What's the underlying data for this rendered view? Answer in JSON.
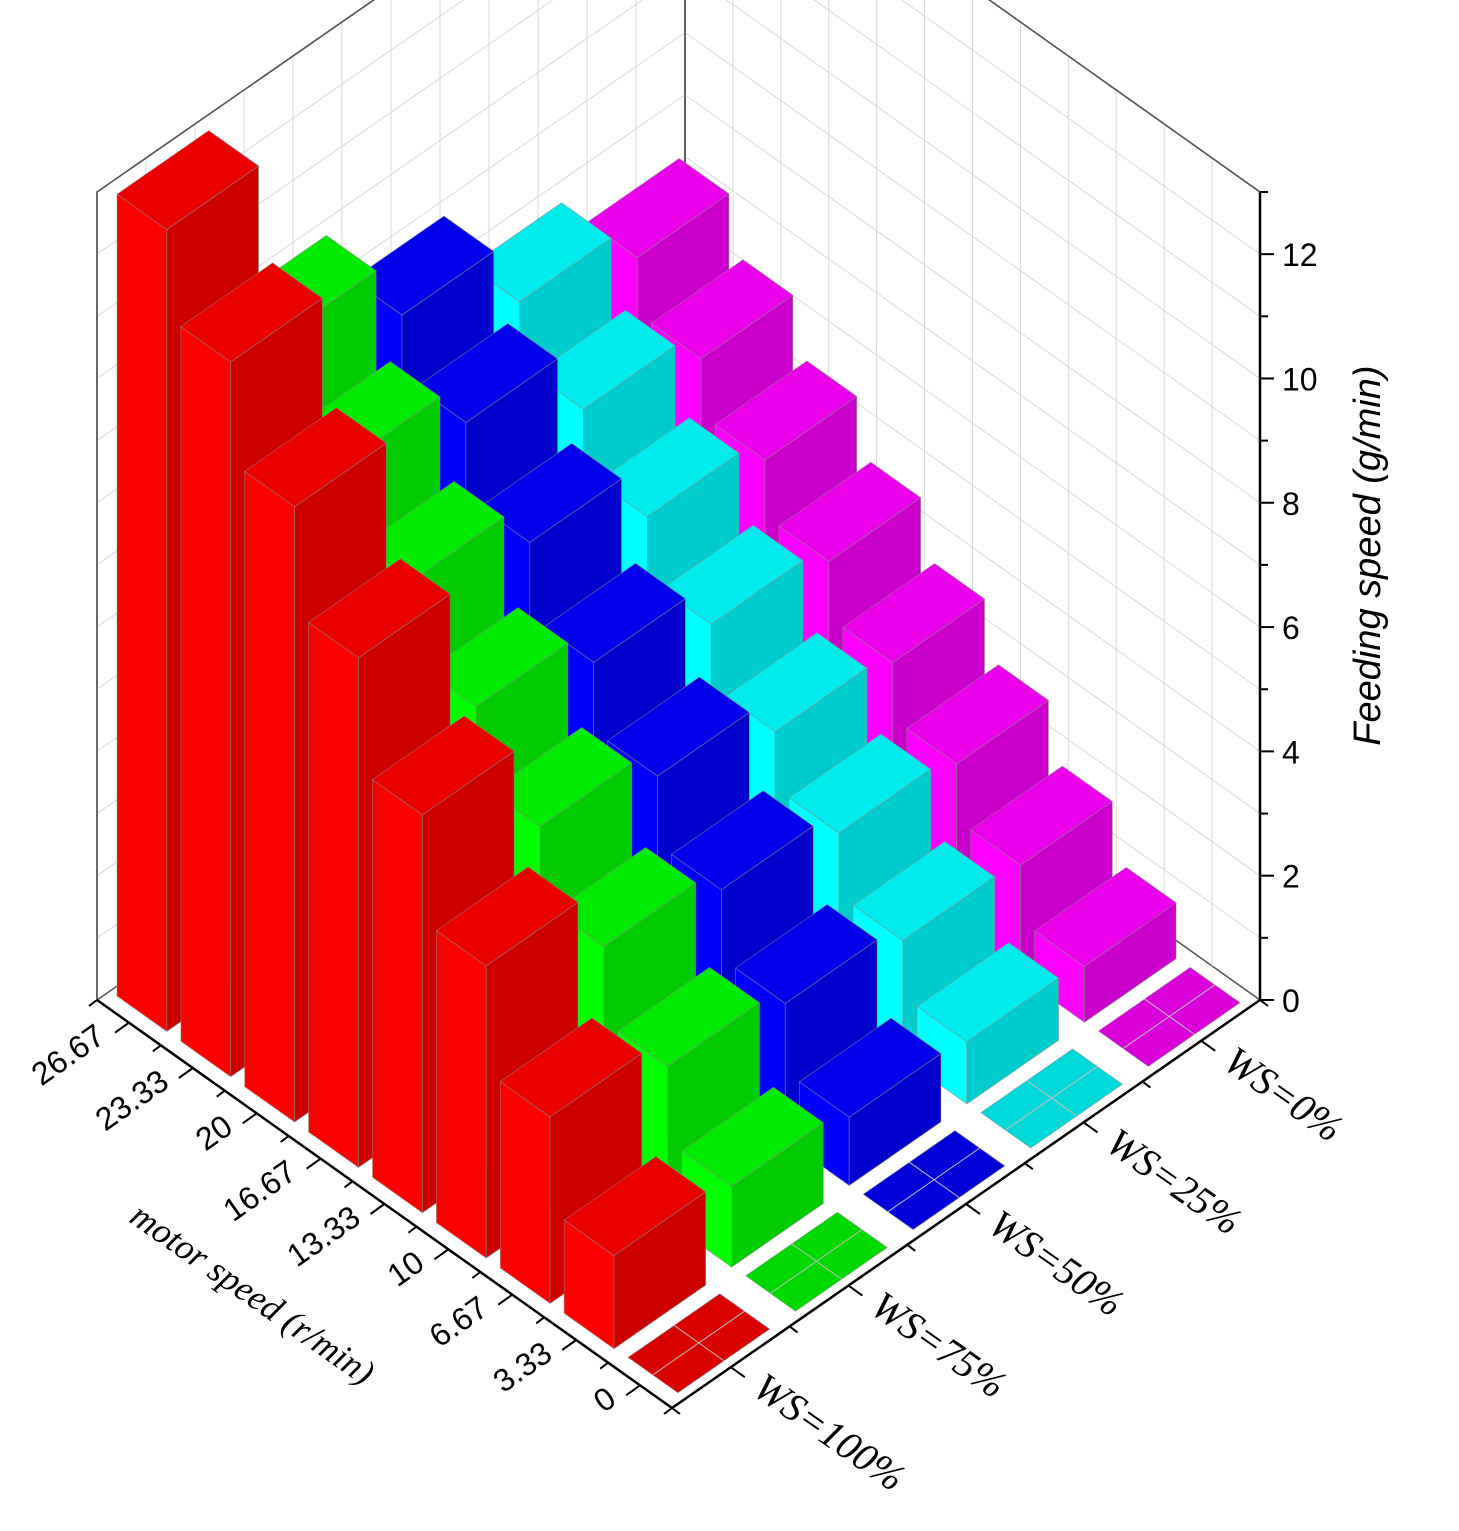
{
  "chart_data": {
    "type": "bar3d",
    "title": "",
    "xlabel": "motor speed (r/min)",
    "zlabel": "Feeding speed (g/min)",
    "x_categories": [
      "0",
      "3.33",
      "6.67",
      "10",
      "13.33",
      "16.67",
      "20",
      "23.33",
      "26.67"
    ],
    "y_categories": [
      "WS=100%",
      "WS=75%",
      "WS=50%",
      "WS=25%",
      "WS=0%"
    ],
    "z_ticks": [
      "0",
      "2",
      "4",
      "6",
      "8",
      "10",
      "12"
    ],
    "zlim": [
      0,
      13
    ],
    "series": [
      {
        "name": "WS=100%",
        "color": "#ff0000",
        "values": [
          0,
          1.5,
          3.0,
          4.7,
          6.4,
          8.2,
          9.9,
          11.5,
          12.9
        ]
      },
      {
        "name": "WS=75%",
        "color": "#00ff00",
        "values": [
          0,
          1.3,
          2.5,
          3.7,
          4.9,
          6.1,
          7.4,
          8.6,
          9.9
        ]
      },
      {
        "name": "WS=50%",
        "color": "#0000ff",
        "values": [
          0,
          1.1,
          2.2,
          3.3,
          4.4,
          5.5,
          6.7,
          7.9,
          8.9
        ]
      },
      {
        "name": "WS=25%",
        "color": "#00ffff",
        "values": [
          0,
          1.0,
          1.9,
          2.9,
          3.8,
          4.8,
          5.8,
          6.8,
          7.8
        ]
      },
      {
        "name": "WS=0%",
        "color": "#ff00ff",
        "values": [
          0,
          0.9,
          1.8,
          2.7,
          3.6,
          4.5,
          5.4,
          6.3,
          7.2
        ]
      }
    ]
  }
}
